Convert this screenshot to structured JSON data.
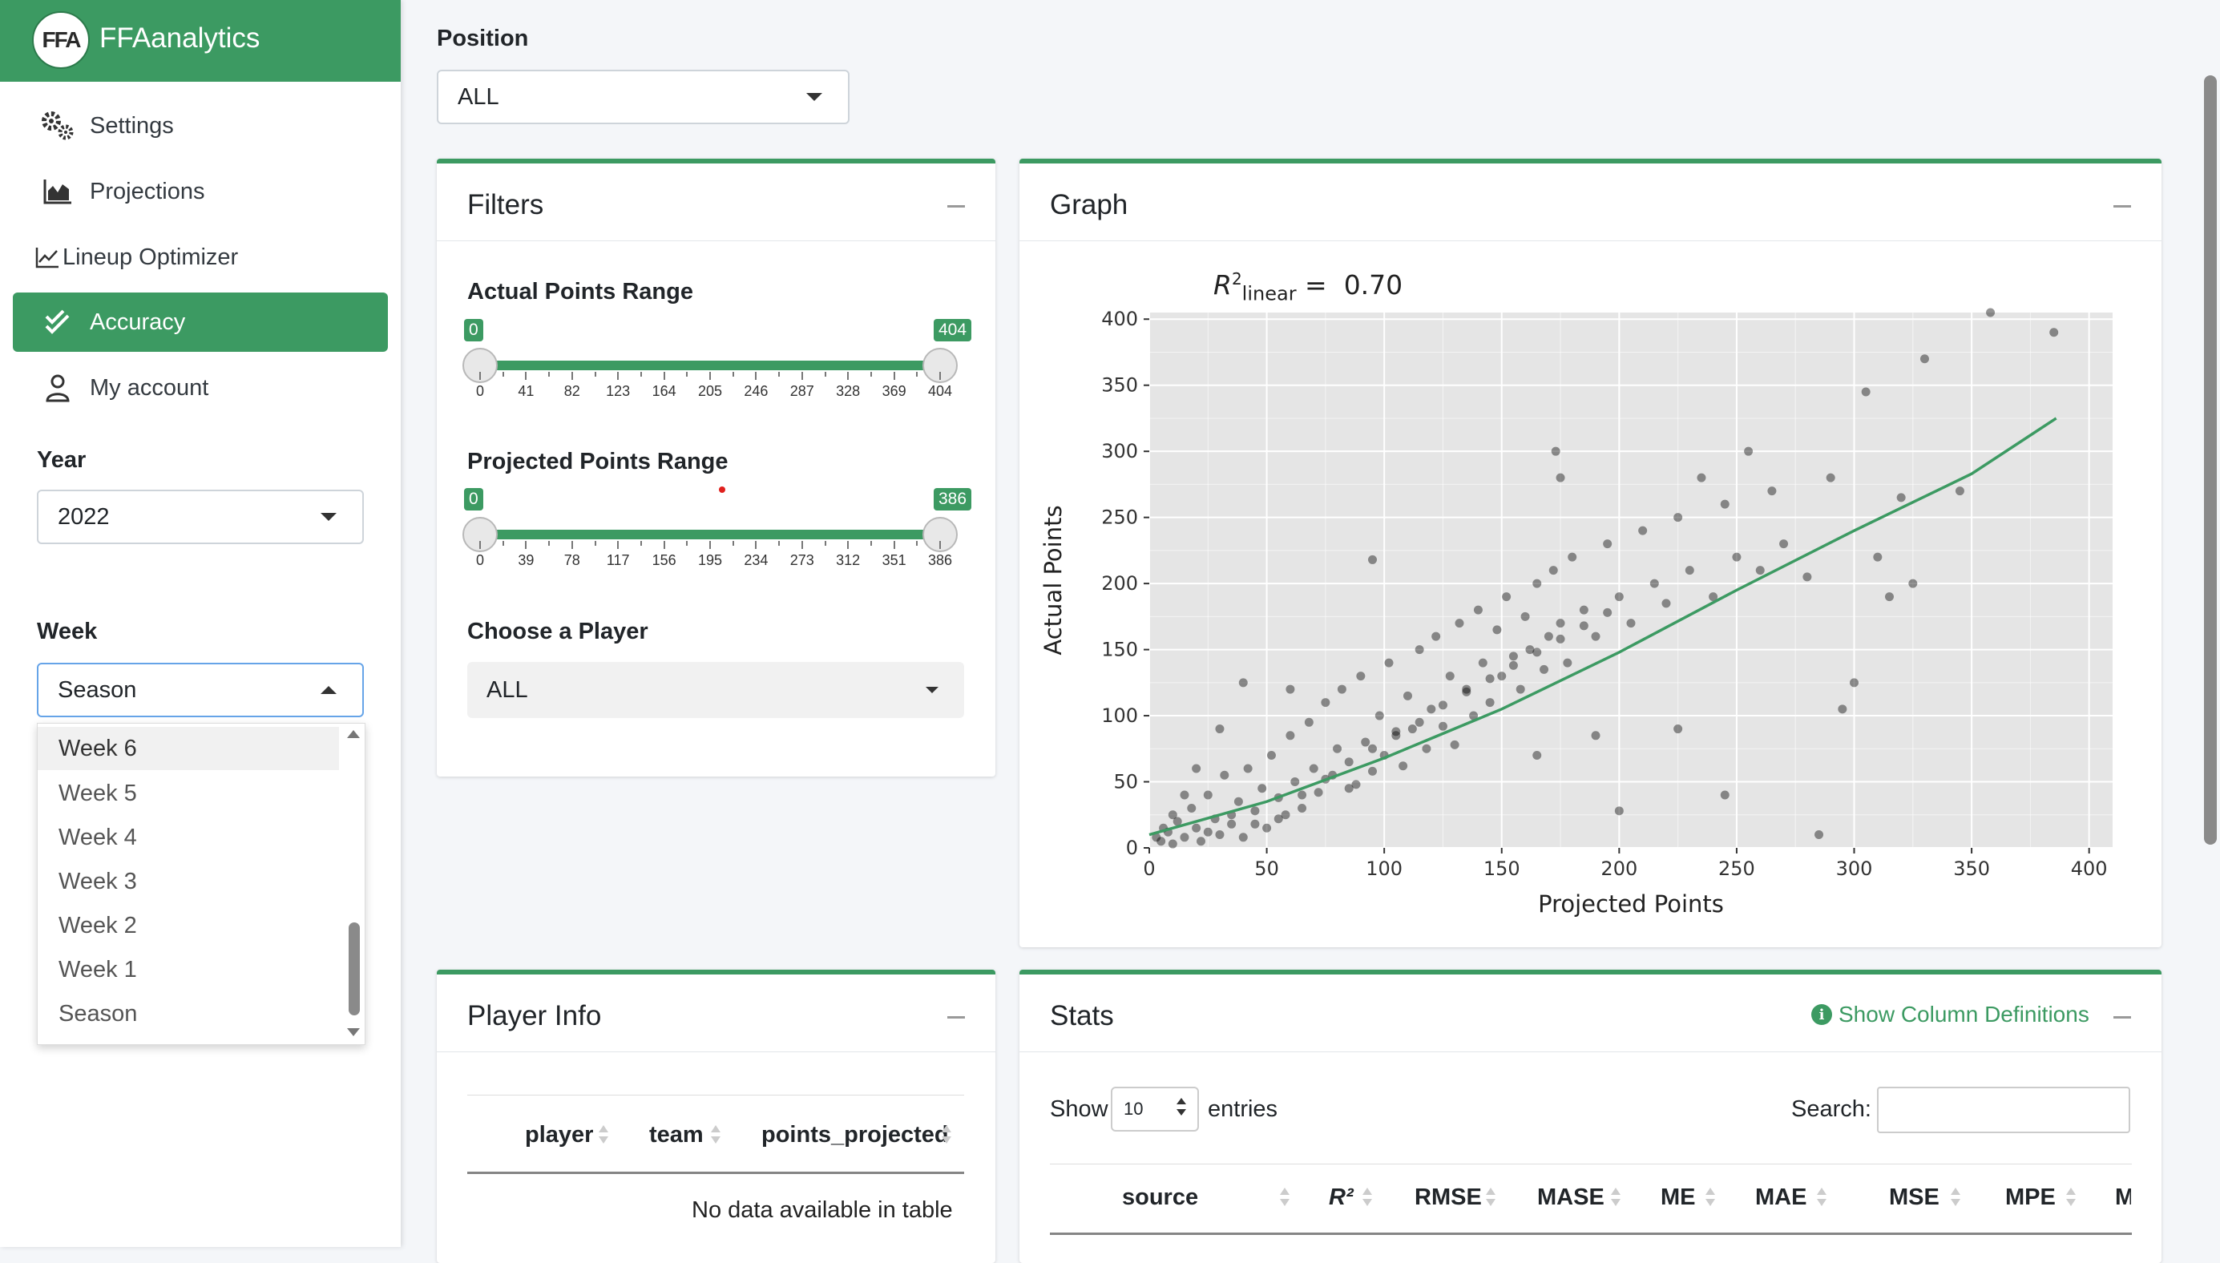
{
  "brand": {
    "name": "FFAanalytics",
    "logo_text": "FFA"
  },
  "sidebar": {
    "nav": [
      {
        "label": "Settings",
        "icon": "gears-icon"
      },
      {
        "label": "Projections",
        "icon": "area-chart-icon"
      },
      {
        "label": "Lineup Optimizer",
        "icon": "line-chart-icon"
      },
      {
        "label": "Accuracy",
        "icon": "check-double-icon",
        "active": true
      },
      {
        "label": "My account",
        "icon": "user-icon"
      }
    ],
    "year_label": "Year",
    "year_value": "2022",
    "week_label": "Week",
    "week_value": "Season",
    "week_options": [
      "Week 6",
      "Week 5",
      "Week 4",
      "Week 3",
      "Week 2",
      "Week 1",
      "Season"
    ]
  },
  "position": {
    "label": "Position",
    "value": "ALL"
  },
  "filters": {
    "title": "Filters",
    "actual_label": "Actual Points Range",
    "actual_min": "0",
    "actual_max": "404",
    "actual_ticks": [
      "0",
      "41",
      "82",
      "123",
      "164",
      "205",
      "246",
      "287",
      "328",
      "369",
      "404"
    ],
    "projected_label": "Projected Points Range",
    "projected_min": "0",
    "projected_max": "386",
    "projected_ticks": [
      "0",
      "39",
      "78",
      "117",
      "156",
      "195",
      "234",
      "273",
      "312",
      "351",
      "386"
    ],
    "player_label": "Choose a Player",
    "player_value": "ALL"
  },
  "graph": {
    "title": "Graph",
    "r2_value": "0.70",
    "colors": {
      "panel": "#e5e5e5",
      "grid": "#ffffff",
      "point": "#000000",
      "line": "#3c9a62"
    }
  },
  "chart_data": {
    "type": "scatter",
    "xlabel": "Projected Points",
    "ylabel": "Actual Points",
    "xlim": [
      0,
      410
    ],
    "ylim": [
      0,
      405
    ],
    "xticks": [
      0,
      50,
      100,
      150,
      200,
      250,
      300,
      350,
      400
    ],
    "yticks": [
      0,
      50,
      100,
      150,
      200,
      250,
      300,
      350,
      400
    ],
    "annotation": "R²linear = 0.70",
    "fit_line": [
      [
        0,
        10
      ],
      [
        50,
        35
      ],
      [
        100,
        68
      ],
      [
        150,
        105
      ],
      [
        200,
        148
      ],
      [
        250,
        195
      ],
      [
        300,
        240
      ],
      [
        350,
        283
      ],
      [
        386,
        325
      ]
    ],
    "points": [
      [
        5,
        5
      ],
      [
        8,
        12
      ],
      [
        10,
        3
      ],
      [
        12,
        20
      ],
      [
        15,
        8
      ],
      [
        18,
        30
      ],
      [
        20,
        15
      ],
      [
        22,
        5
      ],
      [
        25,
        40
      ],
      [
        28,
        22
      ],
      [
        30,
        10
      ],
      [
        32,
        55
      ],
      [
        35,
        18
      ],
      [
        38,
        35
      ],
      [
        40,
        8
      ],
      [
        42,
        60
      ],
      [
        45,
        28
      ],
      [
        48,
        45
      ],
      [
        50,
        15
      ],
      [
        52,
        70
      ],
      [
        55,
        38
      ],
      [
        58,
        25
      ],
      [
        60,
        85
      ],
      [
        62,
        50
      ],
      [
        65,
        30
      ],
      [
        68,
        95
      ],
      [
        70,
        60
      ],
      [
        72,
        42
      ],
      [
        75,
        110
      ],
      [
        78,
        55
      ],
      [
        80,
        75
      ],
      [
        82,
        120
      ],
      [
        85,
        65
      ],
      [
        88,
        48
      ],
      [
        90,
        130
      ],
      [
        92,
        80
      ],
      [
        95,
        58
      ],
      [
        98,
        100
      ],
      [
        100,
        70
      ],
      [
        102,
        140
      ],
      [
        105,
        85
      ],
      [
        108,
        62
      ],
      [
        110,
        115
      ],
      [
        112,
        90
      ],
      [
        115,
        150
      ],
      [
        118,
        75
      ],
      [
        120,
        105
      ],
      [
        122,
        160
      ],
      [
        125,
        92
      ],
      [
        128,
        130
      ],
      [
        130,
        78
      ],
      [
        132,
        170
      ],
      [
        135,
        120
      ],
      [
        138,
        100
      ],
      [
        140,
        180
      ],
      [
        142,
        140
      ],
      [
        145,
        110
      ],
      [
        148,
        165
      ],
      [
        150,
        130
      ],
      [
        152,
        190
      ],
      [
        155,
        145
      ],
      [
        158,
        120
      ],
      [
        160,
        175
      ],
      [
        162,
        150
      ],
      [
        165,
        200
      ],
      [
        168,
        135
      ],
      [
        170,
        160
      ],
      [
        172,
        210
      ],
      [
        175,
        170
      ],
      [
        178,
        140
      ],
      [
        180,
        220
      ],
      [
        185,
        180
      ],
      [
        190,
        160
      ],
      [
        195,
        230
      ],
      [
        200,
        190
      ],
      [
        205,
        170
      ],
      [
        210,
        240
      ],
      [
        215,
        200
      ],
      [
        220,
        185
      ],
      [
        225,
        250
      ],
      [
        230,
        210
      ],
      [
        235,
        280
      ],
      [
        240,
        190
      ],
      [
        245,
        260
      ],
      [
        250,
        220
      ],
      [
        255,
        300
      ],
      [
        260,
        210
      ],
      [
        265,
        270
      ],
      [
        270,
        230
      ],
      [
        280,
        205
      ],
      [
        285,
        10
      ],
      [
        290,
        280
      ],
      [
        295,
        105
      ],
      [
        300,
        125
      ],
      [
        305,
        345
      ],
      [
        310,
        220
      ],
      [
        315,
        190
      ],
      [
        320,
        265
      ],
      [
        325,
        200
      ],
      [
        330,
        370
      ],
      [
        345,
        270
      ],
      [
        358,
        405
      ],
      [
        385,
        390
      ],
      [
        173,
        300
      ],
      [
        175,
        280
      ],
      [
        95,
        218
      ],
      [
        60,
        120
      ],
      [
        40,
        125
      ],
      [
        30,
        90
      ],
      [
        20,
        60
      ],
      [
        15,
        40
      ],
      [
        10,
        25
      ],
      [
        6,
        15
      ],
      [
        3,
        8
      ],
      [
        25,
        12
      ],
      [
        35,
        25
      ],
      [
        45,
        18
      ],
      [
        55,
        22
      ],
      [
        65,
        40
      ],
      [
        75,
        52
      ],
      [
        85,
        45
      ],
      [
        95,
        75
      ],
      [
        105,
        88
      ],
      [
        115,
        95
      ],
      [
        125,
        108
      ],
      [
        135,
        118
      ],
      [
        145,
        128
      ],
      [
        155,
        138
      ],
      [
        165,
        148
      ],
      [
        175,
        158
      ],
      [
        185,
        168
      ],
      [
        195,
        178
      ],
      [
        225,
        90
      ],
      [
        190,
        85
      ],
      [
        165,
        70
      ],
      [
        200,
        28
      ],
      [
        245,
        40
      ]
    ]
  },
  "player_info": {
    "title": "Player Info",
    "columns": [
      "player",
      "team",
      "points_projected"
    ],
    "empty_text": "No data available in table"
  },
  "stats": {
    "title": "Stats",
    "defs_link": "Show Column Definitions",
    "show_label": "Show",
    "entries_value": "10",
    "entries_label": "entries",
    "search_label": "Search:",
    "columns": [
      "source",
      "R²",
      "RMSE",
      "MASE",
      "ME",
      "MAE",
      "MSE",
      "MPE",
      "M"
    ]
  }
}
